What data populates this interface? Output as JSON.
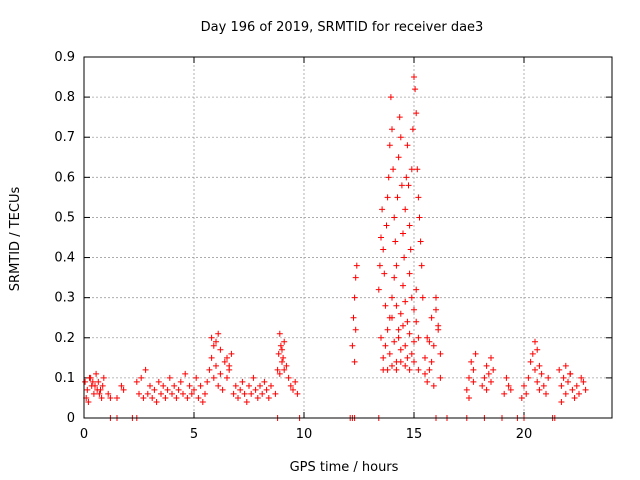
{
  "chart_data": {
    "type": "scatter",
    "title": "Day 196 of 2019, SRMTID for receiver dae3",
    "xlabel": "GPS time / hours",
    "ylabel": "SRMTID / TECUs",
    "xlim": [
      0,
      24
    ],
    "ylim": [
      0,
      0.9
    ],
    "xticks": [
      0,
      5,
      10,
      15,
      20
    ],
    "xtick_labels": [
      "0",
      "5",
      "10",
      "15",
      "20"
    ],
    "yticks": [
      0,
      0.1,
      0.2,
      0.3,
      0.4,
      0.5,
      0.6,
      0.7,
      0.8,
      0.9
    ],
    "ytick_labels": [
      "0",
      "0.1",
      "0.2",
      "0.3",
      "0.4",
      "0.5",
      "0.6",
      "0.7",
      "0.8",
      "0.9"
    ],
    "grid": true,
    "marker": "plus",
    "color": "#ff0000",
    "series": [
      {
        "name": "dae3",
        "x": [
          0.05,
          0.15,
          0.25,
          0.35,
          0.45,
          0.55,
          0.65,
          0.75,
          0.85,
          0.1,
          0.3,
          0.5,
          0.7,
          0.9,
          0.2,
          0.4,
          0.6,
          0.8,
          1.1,
          1.2,
          1.5,
          1.7,
          1.8,
          2.4,
          2.5,
          2.6,
          2.7,
          2.8,
          2.9,
          3.0,
          3.1,
          3.2,
          3.3,
          3.4,
          3.5,
          3.6,
          3.7,
          3.8,
          3.9,
          4.0,
          4.1,
          4.2,
          4.3,
          4.4,
          4.5,
          4.6,
          4.7,
          4.8,
          4.9,
          5.0,
          5.1,
          5.2,
          5.3,
          5.4,
          5.5,
          5.6,
          5.7,
          5.8,
          5.9,
          6.0,
          6.1,
          6.2,
          6.3,
          6.4,
          6.5,
          6.6,
          6.7,
          5.8,
          5.9,
          6.0,
          6.1,
          6.2,
          6.5,
          6.6,
          6.8,
          6.9,
          7.0,
          7.1,
          7.2,
          7.3,
          7.4,
          7.5,
          7.6,
          7.7,
          7.8,
          7.9,
          8.0,
          8.1,
          8.2,
          8.3,
          8.4,
          8.5,
          8.7,
          8.8,
          8.85,
          8.9,
          8.95,
          9.0,
          9.05,
          9.1,
          9.2,
          9.3,
          9.4,
          9.5,
          9.6,
          9.7,
          8.9,
          9.0,
          9.1,
          12.2,
          12.25,
          12.3,
          12.35,
          12.4,
          12.3,
          12.35,
          13.4,
          13.45,
          13.5,
          13.55,
          13.6,
          13.65,
          13.7,
          13.75,
          13.8,
          13.85,
          13.9,
          13.95,
          14.0,
          14.05,
          14.1,
          14.15,
          14.2,
          14.25,
          14.3,
          14.35,
          14.4,
          14.45,
          14.5,
          14.55,
          14.6,
          14.65,
          14.7,
          14.75,
          14.8,
          14.85,
          14.9,
          14.95,
          15.0,
          15.05,
          15.1,
          15.15,
          15.2,
          15.25,
          15.3,
          15.35,
          15.4,
          13.9,
          14.0,
          14.1,
          14.2,
          14.3,
          14.4,
          14.5,
          14.6,
          14.7,
          14.8,
          14.9,
          15.0,
          15.1,
          15.2,
          13.5,
          13.6,
          13.7,
          13.8,
          13.9,
          14.0,
          14.1,
          14.2,
          14.3,
          14.4,
          14.5,
          14.6,
          14.7,
          14.8,
          14.9,
          15.0,
          15.1,
          13.6,
          13.8,
          14.0,
          14.2,
          14.4,
          14.6,
          14.8,
          15.0,
          15.2,
          15.5,
          15.6,
          15.7,
          15.8,
          15.9,
          16.0,
          16.1,
          16.2,
          15.6,
          15.8,
          16.0,
          16.2,
          15.5,
          15.7,
          15.9,
          16.1,
          17.4,
          17.5,
          17.6,
          17.7,
          17.8,
          17.5,
          17.7,
          18.1,
          18.2,
          18.3,
          18.4,
          18.5,
          18.6,
          18.3,
          18.5,
          19.1,
          19.2,
          19.3,
          19.4,
          19.9,
          20.0,
          20.1,
          20.2,
          20.3,
          20.4,
          20.5,
          20.6,
          20.7,
          20.8,
          20.9,
          21.0,
          21.1,
          20.5,
          20.6,
          20.7,
          21.6,
          21.7,
          21.8,
          21.9,
          22.0,
          22.1,
          22.2,
          22.3,
          22.4,
          22.5,
          22.6,
          22.7,
          22.8,
          21.7,
          21.9,
          22.1,
          1.2,
          1.5,
          2.2,
          2.4,
          8.8,
          9.8,
          12.1,
          12.2,
          12.3,
          13.4,
          16.0,
          16.5,
          17.4,
          18.2,
          19.0,
          19.7,
          20.0,
          21.3,
          21.4
        ],
        "y": [
          0.09,
          0.07,
          0.1,
          0.08,
          0.06,
          0.11,
          0.09,
          0.07,
          0.08,
          0.05,
          0.1,
          0.08,
          0.06,
          0.1,
          0.04,
          0.09,
          0.07,
          0.05,
          0.06,
          0.05,
          0.05,
          0.08,
          0.07,
          0.09,
          0.06,
          0.1,
          0.05,
          0.12,
          0.06,
          0.08,
          0.05,
          0.07,
          0.04,
          0.09,
          0.06,
          0.08,
          0.05,
          0.07,
          0.1,
          0.06,
          0.08,
          0.05,
          0.07,
          0.09,
          0.06,
          0.11,
          0.05,
          0.08,
          0.06,
          0.07,
          0.1,
          0.05,
          0.08,
          0.04,
          0.06,
          0.09,
          0.12,
          0.15,
          0.1,
          0.13,
          0.08,
          0.11,
          0.07,
          0.14,
          0.1,
          0.12,
          0.16,
          0.2,
          0.18,
          0.19,
          0.21,
          0.17,
          0.15,
          0.13,
          0.06,
          0.08,
          0.05,
          0.07,
          0.09,
          0.06,
          0.04,
          0.08,
          0.06,
          0.1,
          0.07,
          0.05,
          0.08,
          0.06,
          0.09,
          0.07,
          0.05,
          0.08,
          0.06,
          0.12,
          0.16,
          0.21,
          0.18,
          0.14,
          0.15,
          0.19,
          0.13,
          0.1,
          0.08,
          0.07,
          0.09,
          0.06,
          0.11,
          0.17,
          0.12,
          0.18,
          0.25,
          0.3,
          0.35,
          0.38,
          0.14,
          0.22,
          0.32,
          0.38,
          0.45,
          0.52,
          0.42,
          0.36,
          0.28,
          0.48,
          0.55,
          0.6,
          0.68,
          0.8,
          0.72,
          0.62,
          0.5,
          0.44,
          0.38,
          0.55,
          0.65,
          0.75,
          0.7,
          0.58,
          0.46,
          0.4,
          0.52,
          0.6,
          0.68,
          0.58,
          0.48,
          0.42,
          0.62,
          0.72,
          0.85,
          0.82,
          0.76,
          0.62,
          0.55,
          0.5,
          0.44,
          0.38,
          0.3,
          0.25,
          0.3,
          0.35,
          0.28,
          0.22,
          0.26,
          0.33,
          0.29,
          0.24,
          0.36,
          0.3,
          0.27,
          0.32,
          0.2,
          0.2,
          0.15,
          0.18,
          0.22,
          0.16,
          0.25,
          0.19,
          0.14,
          0.2,
          0.17,
          0.23,
          0.18,
          0.15,
          0.21,
          0.16,
          0.19,
          0.24,
          0.12,
          0.12,
          0.13,
          0.12,
          0.14,
          0.13,
          0.12,
          0.14,
          0.12,
          0.15,
          0.2,
          0.12,
          0.25,
          0.18,
          0.3,
          0.22,
          0.1,
          0.09,
          0.14,
          0.27,
          0.16,
          0.11,
          0.19,
          0.08,
          0.23,
          0.07,
          0.1,
          0.14,
          0.12,
          0.16,
          0.05,
          0.09,
          0.08,
          0.1,
          0.13,
          0.11,
          0.09,
          0.12,
          0.07,
          0.15,
          0.06,
          0.1,
          0.08,
          0.07,
          0.05,
          0.08,
          0.06,
          0.1,
          0.14,
          0.16,
          0.12,
          0.09,
          0.07,
          0.11,
          0.08,
          0.06,
          0.1,
          0.19,
          0.17,
          0.13,
          0.12,
          0.08,
          0.1,
          0.06,
          0.09,
          0.11,
          0.07,
          0.05,
          0.08,
          0.06,
          0.1,
          0.09,
          0.07,
          0.04,
          0.13,
          0.11,
          0,
          0,
          0,
          0,
          0,
          0,
          0,
          0,
          0,
          0,
          0,
          0,
          0,
          0,
          0,
          0,
          0,
          0,
          0
        ]
      }
    ]
  }
}
